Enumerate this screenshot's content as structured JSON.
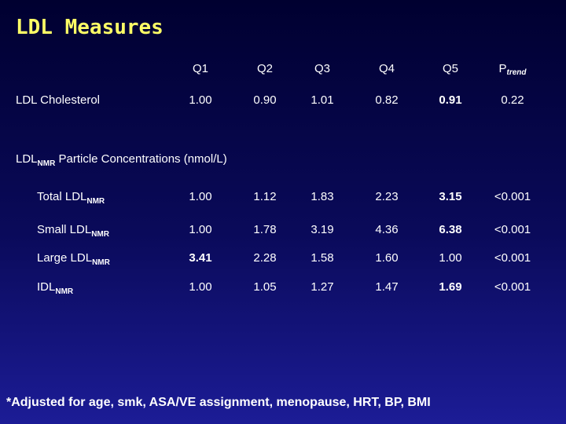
{
  "header": {
    "title": "LDL Measures"
  },
  "table": {
    "columns": [
      {
        "text": "Q1"
      },
      {
        "text": "Q2"
      },
      {
        "text": "Q3"
      },
      {
        "text": "Q4"
      },
      {
        "text": "Q5"
      },
      {
        "text": "P",
        "sub": "trend"
      }
    ],
    "rows": [
      {
        "label": {
          "text": "LDL Cholesterol"
        },
        "cells": [
          "1.00",
          "0.90",
          "1.01",
          "0.82",
          "0.91",
          "0.22"
        ],
        "bold": [
          4
        ]
      }
    ],
    "section": {
      "label": {
        "text": "LDL",
        "sub": "NMR",
        "after": " Particle Concentrations (nmol/L)"
      },
      "rows": [
        {
          "label": {
            "text": "Total LDL",
            "sub": "NMR"
          },
          "cells": [
            "1.00",
            "1.12",
            "1.83",
            "2.23",
            "3.15",
            "<0.001"
          ],
          "bold": [
            4
          ]
        },
        {
          "label": {
            "text": "Small LDL",
            "sub": "NMR"
          },
          "cells": [
            "1.00",
            "1.78",
            "3.19",
            "4.36",
            "6.38",
            "<0.001"
          ],
          "bold": [
            4
          ]
        },
        {
          "label": {
            "text": "Large LDL",
            "sub": "NMR"
          },
          "cells": [
            "3.41",
            "2.28",
            "1.58",
            "1.60",
            "1.00",
            "<0.001"
          ],
          "bold": [
            0
          ]
        },
        {
          "label": {
            "text": "IDL",
            "sub": "NMR"
          },
          "cells": [
            "1.00",
            "1.05",
            "1.27",
            "1.47",
            "1.69",
            "<0.001"
          ],
          "bold": [
            4
          ]
        }
      ]
    }
  },
  "footnote": "*Adjusted for age, smk, ASA/VE assignment, menopause, HRT, BP, BMI"
}
